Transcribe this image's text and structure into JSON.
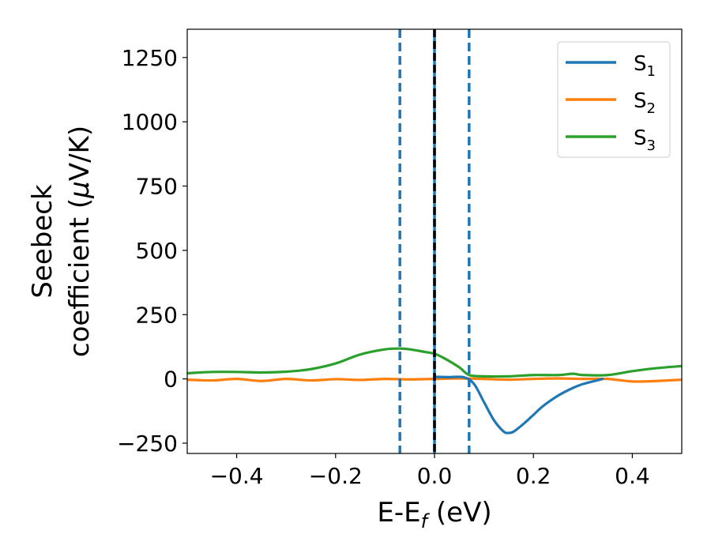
{
  "chart_data": {
    "type": "line",
    "xlabel": {
      "main": "E-E",
      "sub": "f",
      "tail": " (eV)"
    },
    "ylabel": {
      "line1": "Seebeck",
      "line2_text": "coefficient  (",
      "line2_mu": "μ",
      "line2_tail": "V/K)"
    },
    "xlim": [
      -0.5,
      0.5
    ],
    "ylim": [
      -290,
      1360
    ],
    "xticks": [
      -0.4,
      -0.2,
      0.0,
      0.2,
      0.4
    ],
    "xtick_labels": [
      "−0.4",
      "−0.2",
      "0.0",
      "0.2",
      "0.4"
    ],
    "yticks": [
      -250,
      0,
      250,
      500,
      750,
      1000,
      1250
    ],
    "ytick_labels": [
      "−250",
      "0",
      "250",
      "500",
      "750",
      "1000",
      "1250"
    ],
    "grid": false,
    "legend_position": "top-right",
    "series": [
      {
        "name": "S",
        "sub": "1",
        "color": "#1f77b4",
        "x": [
          0.0,
          0.03,
          0.06,
          0.08,
          0.1,
          0.12,
          0.14,
          0.15,
          0.16,
          0.18,
          0.2,
          0.22,
          0.25,
          0.28,
          0.3,
          0.32,
          0.34
        ],
        "y": [
          8,
          7,
          6,
          -20,
          -90,
          -160,
          -205,
          -210,
          -205,
          -175,
          -140,
          -105,
          -65,
          -35,
          -20,
          -10,
          0
        ]
      },
      {
        "name": "S",
        "sub": "2",
        "color": "#ff7f0e",
        "x": [
          -0.5,
          -0.45,
          -0.4,
          -0.35,
          -0.3,
          -0.25,
          -0.2,
          -0.15,
          -0.1,
          -0.05,
          0.0,
          0.05,
          0.1,
          0.15,
          0.2,
          0.25,
          0.3,
          0.35,
          0.4,
          0.45,
          0.5
        ],
        "y": [
          -3,
          -6,
          0,
          -8,
          0,
          -6,
          -1,
          -4,
          0,
          -2,
          0,
          2,
          0,
          -3,
          0,
          2,
          0,
          0,
          -10,
          -8,
          -3
        ]
      },
      {
        "name": "S",
        "sub": "3",
        "color": "#2ca02c",
        "x": [
          -0.5,
          -0.45,
          -0.4,
          -0.35,
          -0.3,
          -0.25,
          -0.2,
          -0.15,
          -0.1,
          -0.07,
          -0.05,
          -0.02,
          0.0,
          0.02,
          0.05,
          0.07,
          0.1,
          0.15,
          0.2,
          0.25,
          0.28,
          0.3,
          0.35,
          0.4,
          0.45,
          0.5
        ],
        "y": [
          22,
          27,
          27,
          25,
          28,
          38,
          60,
          95,
          115,
          118,
          115,
          105,
          98,
          80,
          45,
          15,
          10,
          10,
          15,
          15,
          20,
          15,
          15,
          30,
          42,
          50
        ]
      }
    ],
    "vlines": [
      {
        "x": -0.07,
        "style": "dashed",
        "color": "#1f77b4"
      },
      {
        "x": 0.0,
        "style": "solid-dashed",
        "color": "#000000"
      },
      {
        "x": 0.07,
        "style": "dashed",
        "color": "#1f77b4"
      }
    ]
  }
}
